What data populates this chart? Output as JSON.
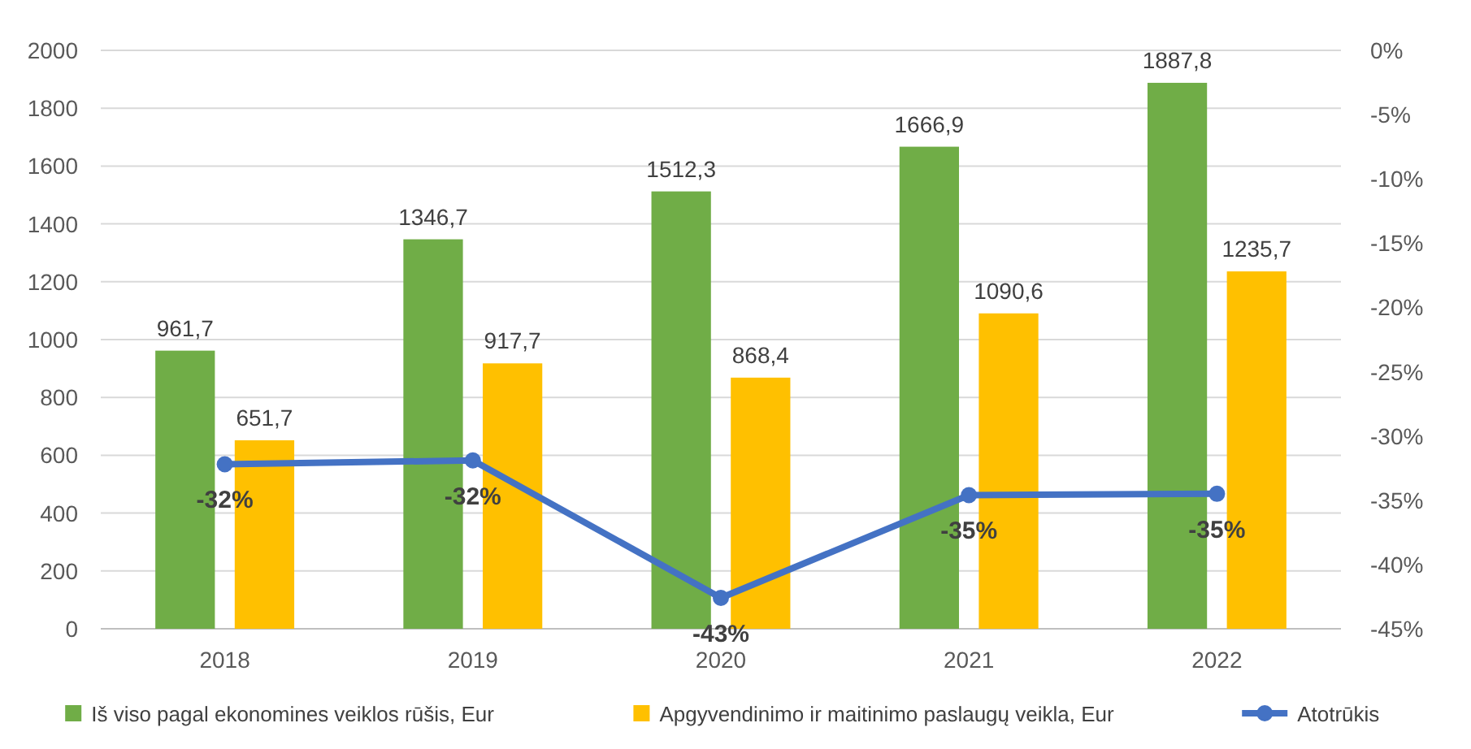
{
  "chart_data": {
    "type": "bar",
    "categories": [
      "2018",
      "2019",
      "2020",
      "2021",
      "2022"
    ],
    "series": [
      {
        "name": "Iš viso pagal ekonomines veiklos rūšis, Eur",
        "color": "#70ad47",
        "values": [
          961.7,
          1346.7,
          1512.3,
          1666.9,
          1887.8
        ],
        "value_labels": [
          "961,7",
          "1346,7",
          "1512,3",
          "1666,9",
          "1887,8"
        ]
      },
      {
        "name": "Apgyvendinimo ir maitinimo paslaugų veikla, Eur",
        "color": "#ffc000",
        "values": [
          651.7,
          917.7,
          868.4,
          1090.6,
          1235.7
        ],
        "value_labels": [
          "651,7",
          "917,7",
          "868,4",
          "1090,6",
          "1235,7"
        ]
      },
      {
        "name": "Atotrūkis",
        "type": "line",
        "axis": "y2",
        "color": "#4472c4",
        "values": [
          -32.2,
          -31.9,
          -42.6,
          -34.6,
          -34.5
        ],
        "value_labels": [
          "-32%",
          "-32%",
          "-43%",
          "-35%",
          "-35%"
        ]
      }
    ],
    "ylim": [
      0,
      2000
    ],
    "yticks": [
      0,
      200,
      400,
      600,
      800,
      1000,
      1200,
      1400,
      1600,
      1800,
      2000
    ],
    "y2lim": [
      -45,
      0
    ],
    "y2ticks": [
      {
        "value": 0,
        "label": "0%"
      },
      {
        "value": -5,
        "label": "-5%"
      },
      {
        "value": -10,
        "label": "-10%"
      },
      {
        "value": -15,
        "label": "-15%"
      },
      {
        "value": -20,
        "label": "-20%"
      },
      {
        "value": -25,
        "label": "-25%"
      },
      {
        "value": -30,
        "label": "-30%"
      },
      {
        "value": -35,
        "label": "-35%"
      },
      {
        "value": -40,
        "label": "-40%"
      },
      {
        "value": -45,
        "label": "-45%"
      }
    ],
    "grid": "y",
    "legend": "bottom",
    "marker": "circle"
  }
}
